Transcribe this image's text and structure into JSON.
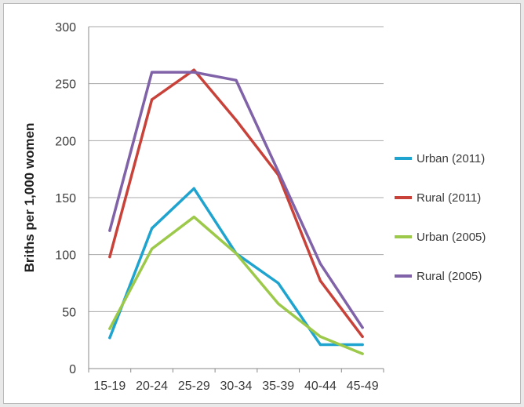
{
  "chart_data": {
    "type": "line",
    "title": "",
    "xlabel": "",
    "ylabel": "Briths per 1,000 women",
    "categories": [
      "15-19",
      "20-24",
      "25-29",
      "30-34",
      "35-39",
      "40-44",
      "45-49"
    ],
    "ylim": [
      0,
      300
    ],
    "yticks": [
      0,
      50,
      100,
      150,
      200,
      250,
      300
    ],
    "grid": "horizontal",
    "legend_position": "right",
    "series": [
      {
        "name": "Urban (2011)",
        "color": "#1fa3cf",
        "values": [
          27,
          123,
          158,
          101,
          75,
          21,
          21
        ]
      },
      {
        "name": "Rural (2011)",
        "color": "#c9423a",
        "values": [
          98,
          236,
          262,
          218,
          170,
          77,
          28
        ]
      },
      {
        "name": "Urban (2005)",
        "color": "#9cc94a",
        "values": [
          35,
          105,
          133,
          101,
          57,
          28,
          13
        ]
      },
      {
        "name": "Rural (2005)",
        "color": "#8062a8",
        "values": [
          121,
          260,
          260,
          253,
          173,
          92,
          36
        ]
      }
    ]
  }
}
